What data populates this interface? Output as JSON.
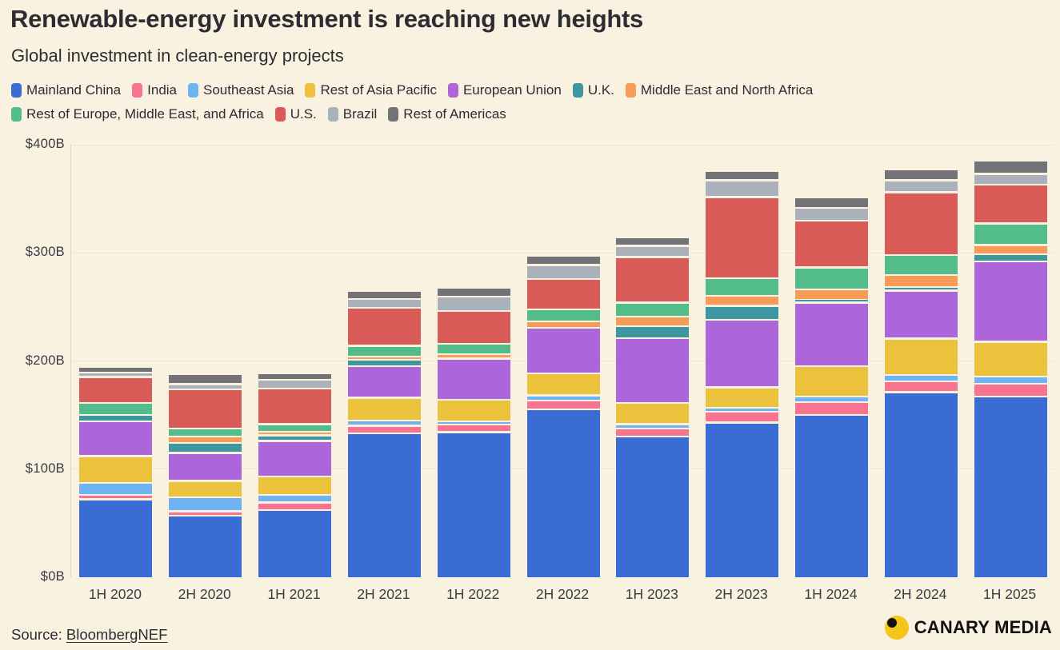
{
  "header": {
    "title": "Renewable-energy investment is reaching new heights",
    "subtitle": "Global investment in clean-energy projects"
  },
  "source": {
    "prefix": "Source: ",
    "link_text": "BloombergNEF"
  },
  "branding": {
    "name": "CANARY MEDIA"
  },
  "colors": {
    "background": "#f9f2e1",
    "text": "#2d2c32",
    "axis_text": "#3c3b41",
    "gridline": "#eee7d3",
    "axis_line": "#ddd5c2",
    "logo_yellow": "#f5c51d"
  },
  "chart_data": {
    "type": "bar",
    "stacked": true,
    "title": "Renewable-energy investment is reaching new heights",
    "subtitle": "Global investment in clean-energy projects",
    "unit": "billion USD",
    "ylabel": "",
    "xlabel": "",
    "ylim": [
      0,
      400
    ],
    "grid": true,
    "legend_position": "top",
    "legend_rows": [
      7,
      4
    ],
    "y_ticks": [
      {
        "value": 0,
        "label": "$0B"
      },
      {
        "value": 100,
        "label": "$100B"
      },
      {
        "value": 200,
        "label": "$200B"
      },
      {
        "value": 300,
        "label": "$300B"
      },
      {
        "value": 400,
        "label": "$400B"
      }
    ],
    "categories": [
      "1H 2020",
      "2H 2020",
      "1H 2021",
      "2H 2021",
      "1H 2022",
      "2H 2022",
      "1H 2023",
      "2H 2023",
      "1H 2024",
      "2H 2024",
      "1H 2025"
    ],
    "series": [
      {
        "name": "Mainland China",
        "color": "#3a6dd3",
        "values": [
          73,
          58,
          63,
          134,
          135,
          156,
          131,
          144,
          151,
          172,
          168
        ]
      },
      {
        "name": "India",
        "color": "#f7738f",
        "values": [
          4,
          4,
          7,
          7,
          7,
          8.5,
          7.5,
          10,
          12,
          10,
          12
        ]
      },
      {
        "name": "Southeast Asia",
        "color": "#6fb4f2",
        "values": [
          11,
          13,
          7,
          5,
          3,
          4.5,
          4,
          3.5,
          5,
          6,
          6.5
        ]
      },
      {
        "name": "Rest of Asia Pacific",
        "color": "#ecc23d",
        "values": [
          25,
          15,
          17,
          21,
          20,
          20.5,
          19.5,
          19,
          28,
          33.5,
          32
        ]
      },
      {
        "name": "European Union",
        "color": "#ad65da",
        "values": [
          32,
          26,
          33,
          29,
          38,
          42,
          60,
          62.5,
          59,
          44.5,
          74.5
        ]
      },
      {
        "name": "U.K.",
        "color": "#3e97a0",
        "values": [
          6,
          9,
          5,
          6,
          0,
          0,
          11,
          13,
          2.5,
          3,
          6.5
        ]
      },
      {
        "name": "Middle East and North Africa",
        "color": "#f79b57",
        "values": [
          0,
          6,
          3,
          3,
          4,
          6,
          9,
          9,
          9.5,
          11.5,
          8.5
        ]
      },
      {
        "name": "Rest of Europe, Middle East, and Africa",
        "color": "#52bd8b",
        "values": [
          11,
          7.5,
          7.5,
          10,
          10,
          11,
          13,
          16.5,
          20.5,
          18.5,
          20
        ]
      },
      {
        "name": "U.S.",
        "color": "#d85b57",
        "values": [
          24,
          36,
          33,
          35,
          30,
          28,
          42,
          75,
          43,
          58,
          36
        ]
      },
      {
        "name": "Brazil",
        "color": "#abb1ba",
        "values": [
          4,
          5,
          8,
          8,
          13.5,
          13,
          10.5,
          15.5,
          12,
          11,
          10
        ]
      },
      {
        "name": "Rest of Americas",
        "color": "#737377",
        "values": [
          5.5,
          9,
          6,
          8,
          8.5,
          8.5,
          8,
          9,
          10,
          10,
          12.5
        ]
      }
    ]
  }
}
